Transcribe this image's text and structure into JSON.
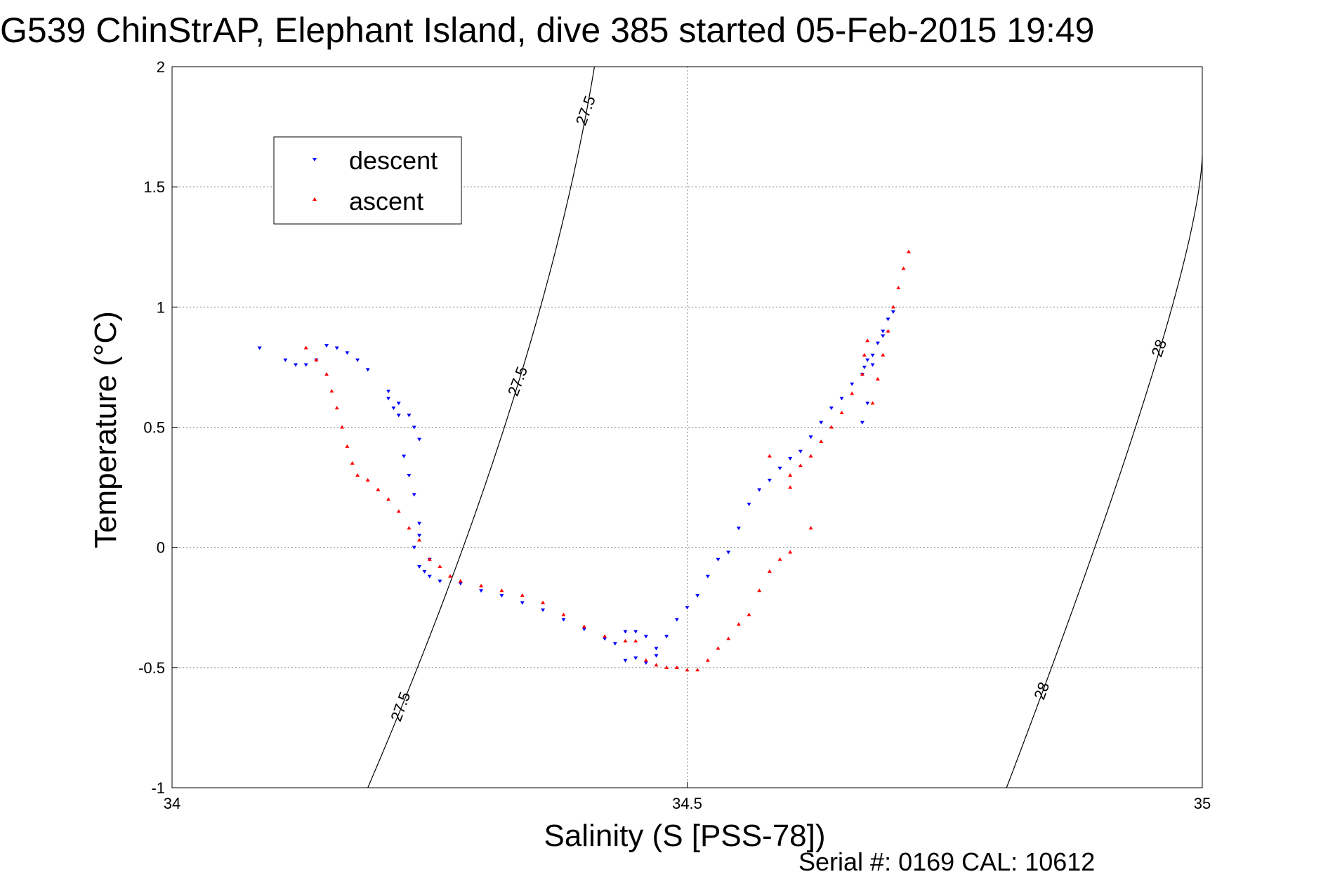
{
  "chart_data": {
    "type": "scatter",
    "title": "G539 ChinStrAP, Elephant Island, dive 385 started 05-Feb-2015 19:49",
    "xlabel": "Salinity (S [PSS-78])",
    "ylabel": "Temperature (°C)",
    "xlim": [
      34,
      35
    ],
    "ylim": [
      -1,
      2
    ],
    "xticks": [
      "34",
      "34.5",
      "35"
    ],
    "yticks": [
      "-1",
      "-0.5",
      "0",
      "0.5",
      "1",
      "1.5",
      "2"
    ],
    "grid": true,
    "legend_position": "upper-left",
    "footer": "Serial #: 0169 CAL: 10612",
    "series": [
      {
        "name": "descent",
        "marker": "down-triangle",
        "color": "#0000ff",
        "x": [
          34.085,
          34.11,
          34.12,
          34.13,
          34.14,
          34.15,
          34.16,
          34.17,
          34.18,
          34.19,
          34.21,
          34.22,
          34.23,
          34.235,
          34.24,
          34.21,
          34.215,
          34.22,
          34.225,
          34.23,
          34.235,
          34.24,
          34.25,
          34.24,
          34.235,
          34.24,
          34.245,
          34.25,
          34.26,
          34.28,
          34.3,
          34.32,
          34.34,
          34.36,
          34.38,
          34.4,
          34.42,
          34.43,
          34.44,
          34.45,
          34.46,
          34.47,
          34.44,
          34.45,
          34.46,
          34.47,
          34.48,
          34.49,
          34.5,
          34.51,
          34.52,
          34.53,
          34.54,
          34.55,
          34.56,
          34.57,
          34.58,
          34.59,
          34.6,
          34.61,
          34.62,
          34.63,
          34.64,
          34.65,
          34.66,
          34.67,
          34.672,
          34.675,
          34.68,
          34.685,
          34.69,
          34.695,
          34.7,
          34.69,
          34.68,
          34.675,
          34.67
        ],
        "y": [
          0.83,
          0.78,
          0.76,
          0.76,
          0.78,
          0.84,
          0.83,
          0.81,
          0.78,
          0.74,
          0.65,
          0.6,
          0.55,
          0.5,
          0.45,
          0.62,
          0.58,
          0.55,
          0.38,
          0.3,
          0.22,
          0.1,
          -0.05,
          0.05,
          -0.0,
          -0.08,
          -0.1,
          -0.12,
          -0.14,
          -0.15,
          -0.18,
          -0.2,
          -0.23,
          -0.26,
          -0.3,
          -0.34,
          -0.38,
          -0.4,
          -0.35,
          -0.35,
          -0.37,
          -0.45,
          -0.47,
          -0.46,
          -0.48,
          -0.42,
          -0.37,
          -0.3,
          -0.25,
          -0.2,
          -0.12,
          -0.05,
          -0.02,
          0.08,
          0.18,
          0.24,
          0.28,
          0.33,
          0.37,
          0.4,
          0.46,
          0.52,
          0.58,
          0.62,
          0.68,
          0.72,
          0.75,
          0.78,
          0.8,
          0.85,
          0.9,
          0.95,
          0.98,
          0.88,
          0.76,
          0.6,
          0.52
        ]
      },
      {
        "name": "ascent",
        "marker": "up-triangle",
        "color": "#ff0000",
        "x": [
          34.13,
          34.14,
          34.15,
          34.155,
          34.16,
          34.165,
          34.17,
          34.175,
          34.18,
          34.19,
          34.2,
          34.21,
          34.22,
          34.23,
          34.24,
          34.25,
          34.26,
          34.27,
          34.28,
          34.3,
          34.32,
          34.34,
          34.36,
          34.38,
          34.4,
          34.42,
          34.44,
          34.45,
          34.46,
          34.47,
          34.48,
          34.49,
          34.5,
          34.51,
          34.52,
          34.53,
          34.54,
          34.55,
          34.56,
          34.57,
          34.58,
          34.59,
          34.6,
          34.62,
          34.6,
          34.58,
          34.6,
          34.61,
          34.62,
          34.63,
          34.64,
          34.65,
          34.66,
          34.67,
          34.672,
          34.675,
          34.68,
          34.685,
          34.69,
          34.695,
          34.7,
          34.705,
          34.71,
          34.715
        ],
        "y": [
          0.83,
          0.78,
          0.72,
          0.65,
          0.58,
          0.5,
          0.42,
          0.35,
          0.3,
          0.28,
          0.24,
          0.2,
          0.15,
          0.08,
          0.03,
          -0.05,
          -0.08,
          -0.12,
          -0.14,
          -0.16,
          -0.18,
          -0.2,
          -0.23,
          -0.28,
          -0.33,
          -0.37,
          -0.39,
          -0.39,
          -0.47,
          -0.49,
          -0.5,
          -0.5,
          -0.51,
          -0.51,
          -0.47,
          -0.42,
          -0.38,
          -0.32,
          -0.28,
          -0.18,
          -0.1,
          -0.05,
          -0.02,
          0.08,
          0.25,
          0.38,
          0.3,
          0.34,
          0.38,
          0.44,
          0.5,
          0.56,
          0.64,
          0.72,
          0.8,
          0.86,
          0.6,
          0.7,
          0.8,
          0.9,
          1.0,
          1.08,
          1.16,
          1.23
        ]
      }
    ],
    "density_contours": [
      {
        "label": "27.5",
        "x": [
          34.19,
          34.33,
          34.41
        ],
        "y": [
          -1,
          0.6,
          2
        ]
      },
      {
        "label": "28",
        "x": [
          34.81,
          34.95,
          35
        ],
        "y": [
          -1,
          0.7,
          1.63
        ]
      }
    ]
  }
}
